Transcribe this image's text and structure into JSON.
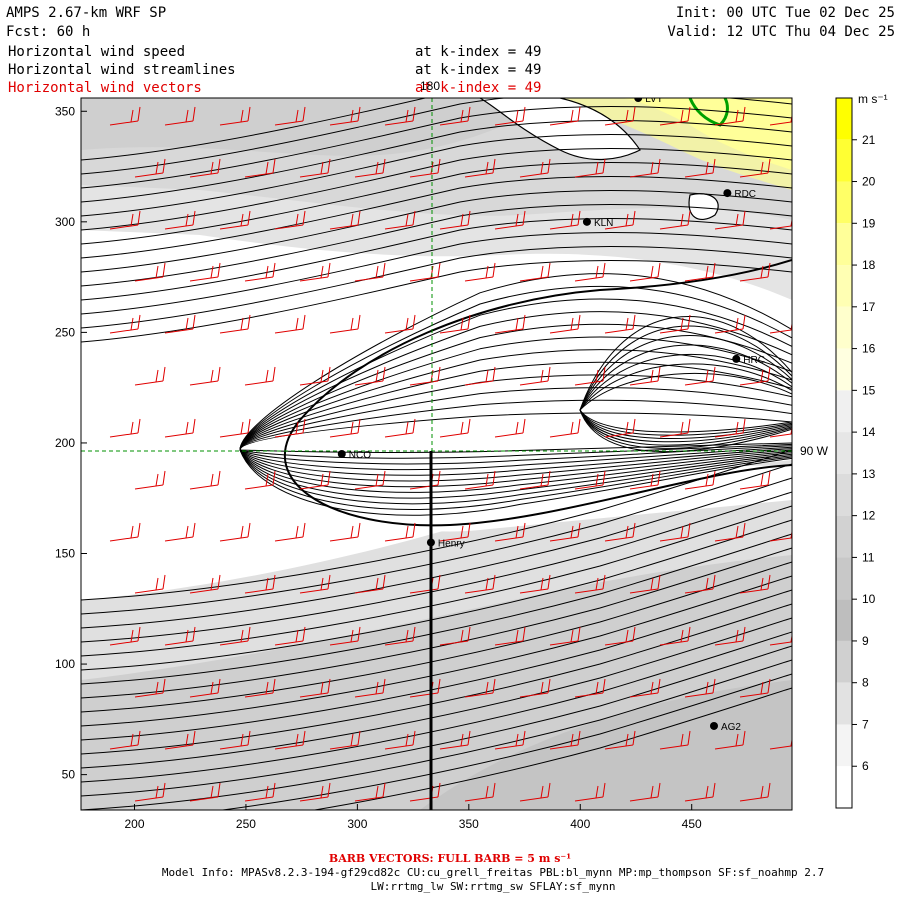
{
  "header": {
    "model": "AMPS 2.67-km WRF SP",
    "forecast": "Fcst:   60 h",
    "init": "Init: 00 UTC Tue 02 Dec 25",
    "valid": "Valid: 12 UTC Thu 04 Dec 25",
    "fields": [
      {
        "name": "Horizontal wind speed",
        "level": "at k-index =  49",
        "color": "#000000"
      },
      {
        "name": "Horizontal wind streamlines",
        "level": "at k-index =  49",
        "color": "#000000"
      },
      {
        "name": "Horizontal wind vectors",
        "level": "at k-index =  49",
        "color": "#e00000"
      }
    ]
  },
  "axes": {
    "x_ticks": [
      "200",
      "250",
      "300",
      "350",
      "400",
      "450"
    ],
    "y_ticks": [
      "350",
      "300",
      "250",
      "200",
      "150",
      "100",
      "50"
    ],
    "x_range": [
      176,
      495
    ],
    "y_range": [
      34,
      356
    ]
  },
  "grid_labels": {
    "meridian": "180",
    "parallel": "90 W"
  },
  "stations": [
    {
      "name": "LVT",
      "x": 426,
      "y": 356
    },
    {
      "name": "RDC",
      "x": 466,
      "y": 313
    },
    {
      "name": "KLN",
      "x": 403,
      "y": 300
    },
    {
      "name": "HRC",
      "x": 470,
      "y": 238
    },
    {
      "name": "NCO",
      "x": 293,
      "y": 195
    },
    {
      "name": "Henry",
      "x": 333,
      "y": 155
    },
    {
      "name": "AG2",
      "x": 460,
      "y": 72
    }
  ],
  "colorbar": {
    "unit": "m s⁻¹",
    "levels": [
      "21",
      "20",
      "19",
      "18",
      "17",
      "16",
      "15",
      "14",
      "13",
      "12",
      "11",
      "10",
      "9",
      "8",
      "7",
      "6"
    ],
    "colors": [
      "#ffff00",
      "#ffff33",
      "#ffff66",
      "#ffff99",
      "#ffffb3",
      "#ffffcc",
      "#ffffe0",
      "#f0f0f0",
      "#e6e6e6",
      "#dcdcdc",
      "#d2d2d2",
      "#c8c8c8",
      "#bebebe",
      "#d0d0d0",
      "#e2e2e2",
      "#f4f4f4",
      "#ffffff"
    ]
  },
  "footer": {
    "barb": "BARB VECTORS:  FULL BARB = 5 m s⁻¹",
    "model_info": "Model Info: MPASv8.2.3-194-gf29cd82c CU:cu_grell_freitas PBL:bl_mynn MP:mp_thompson SF:sf_noahmp 2.7",
    "physics": "LW:rrtmg_lw SW:rrtmg_sw SFLAY:sf_mynn"
  }
}
